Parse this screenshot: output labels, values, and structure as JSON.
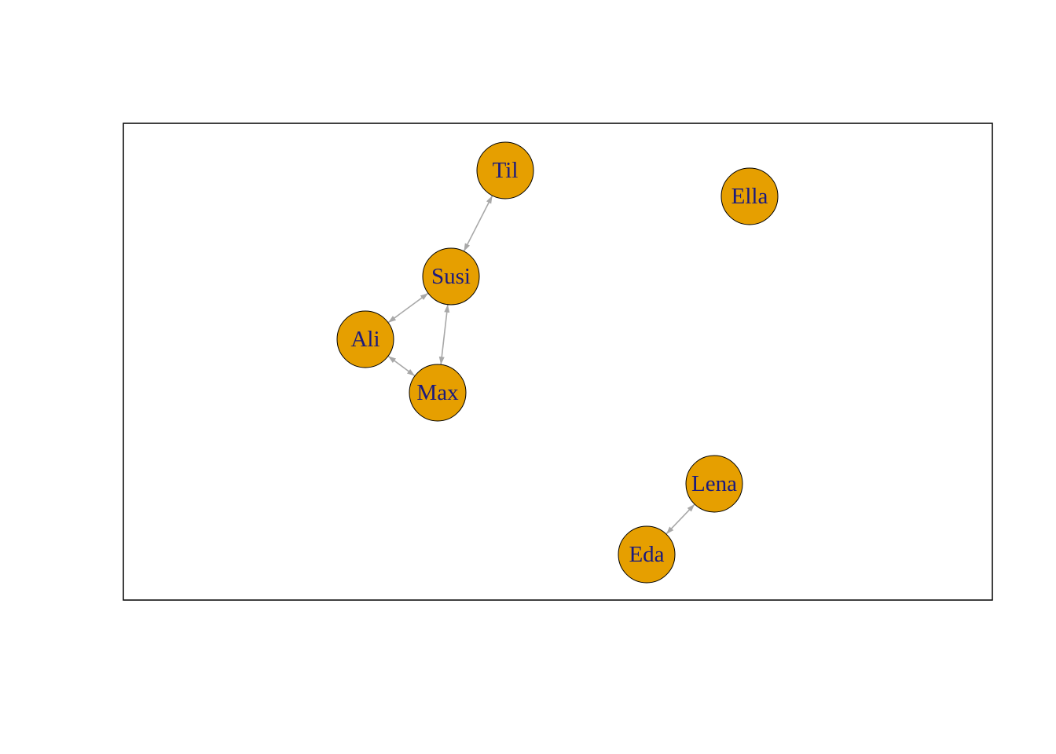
{
  "graph": {
    "directed": true,
    "node_fill": "#E69F00",
    "node_border": "#000000",
    "label_color": "#1a1a7e",
    "edge_color": "#a8a8a8",
    "nodes": [
      {
        "id": "Til",
        "label": "Til"
      },
      {
        "id": "Ella",
        "label": "Ella"
      },
      {
        "id": "Susi",
        "label": "Susi"
      },
      {
        "id": "Ali",
        "label": "Ali"
      },
      {
        "id": "Max",
        "label": "Max"
      },
      {
        "id": "Lena",
        "label": "Lena"
      },
      {
        "id": "Eda",
        "label": "Eda"
      }
    ],
    "edges": [
      {
        "from": "Til",
        "to": "Susi",
        "bidirectional": true
      },
      {
        "from": "Susi",
        "to": "Ali",
        "bidirectional": true
      },
      {
        "from": "Susi",
        "to": "Max",
        "bidirectional": true
      },
      {
        "from": "Ali",
        "to": "Max",
        "bidirectional": true
      },
      {
        "from": "Lena",
        "to": "Eda",
        "bidirectional": true
      }
    ]
  }
}
